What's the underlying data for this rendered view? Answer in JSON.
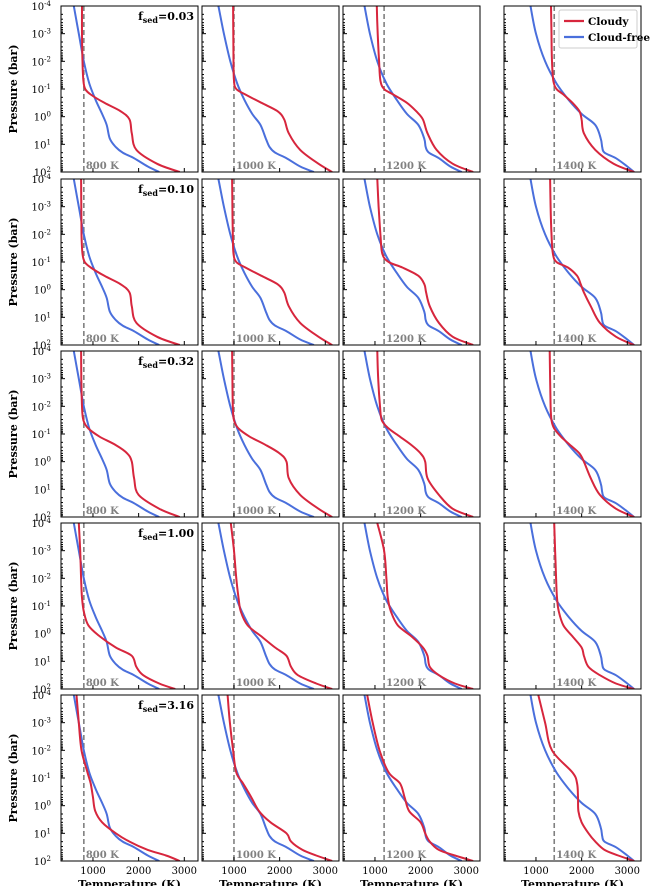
{
  "chart_data": {
    "type": "line",
    "layout": "grid 5 rows x 4 columns",
    "xlabel": "Temperature (K)",
    "ylabel": "Pressure (bar)",
    "yscale": "log",
    "yreversed": true,
    "ylim": [
      0.0001,
      100
    ],
    "xlim": [
      300,
      3300
    ],
    "xticks": [
      1000,
      2000,
      3000
    ],
    "xtick_labels": [
      "1000",
      "2000",
      "3000"
    ],
    "yticks": [
      0.0001,
      0.001,
      0.01,
      0.1,
      1,
      10,
      100
    ],
    "ytick_mant": [
      "10",
      "10",
      "10",
      "10",
      "10",
      "10",
      "10"
    ],
    "ytick_exp": [
      "-4",
      "-3",
      "-2",
      "-1",
      "0",
      "1",
      "2"
    ],
    "legend": {
      "placement": "top-right",
      "entries": [
        "Cloudy",
        "Cloud-free"
      ]
    },
    "series_colors": {
      "Cloudy": "#d7263d",
      "Cloud-free": "#4a6fdc"
    },
    "teff_line_color": "#808080",
    "columns": [
      {
        "teff": 800,
        "teff_label": "800 K"
      },
      {
        "teff": 1000,
        "teff_label": "1000 K"
      },
      {
        "teff": 1200,
        "teff_label": "1200 K"
      },
      {
        "teff": 1400,
        "teff_label": "1400 K"
      }
    ],
    "rows": [
      {
        "fsed_main": "f",
        "fsed_sub": "sed",
        "fsed_value": "=0.03"
      },
      {
        "fsed_main": "f",
        "fsed_sub": "sed",
        "fsed_value": "=0.10"
      },
      {
        "fsed_main": "f",
        "fsed_sub": "sed",
        "fsed_value": "=0.32"
      },
      {
        "fsed_main": "f",
        "fsed_sub": "sed",
        "fsed_value": "=1.00"
      },
      {
        "fsed_main": "f",
        "fsed_sub": "sed",
        "fsed_value": "=3.16"
      }
    ],
    "clear_profiles": [
      {
        "T": [
          580,
          690,
          800,
          920,
          1060,
          1200,
          1300,
          1370,
          1500,
          1650,
          1900,
          2200,
          2450
        ],
        "logP": [
          -4,
          -3,
          -2,
          -1.2,
          -0.6,
          -0.1,
          0.3,
          0.8,
          1.1,
          1.3,
          1.5,
          1.8,
          2
        ]
      },
      {
        "T": [
          660,
          780,
          920,
          1070,
          1230,
          1400,
          1580,
          1700,
          1780,
          1900,
          2150,
          2450,
          2750
        ],
        "logP": [
          -4,
          -3,
          -2,
          -1.2,
          -0.6,
          -0.1,
          0.3,
          0.8,
          1.1,
          1.3,
          1.5,
          1.8,
          2
        ]
      },
      {
        "T": [
          770,
          890,
          1050,
          1250,
          1480,
          1700,
          1950,
          2080,
          2110,
          2180,
          2400,
          2650,
          2900
        ],
        "logP": [
          -4,
          -3,
          -2,
          -1.2,
          -0.6,
          -0.1,
          0.3,
          0.8,
          1.1,
          1.3,
          1.5,
          1.8,
          2
        ]
      },
      {
        "T": [
          880,
          1000,
          1200,
          1450,
          1720,
          2000,
          2300,
          2420,
          2450,
          2500,
          2750,
          3000,
          3150
        ],
        "logP": [
          -4,
          -3,
          -2,
          -1.2,
          -0.6,
          -0.1,
          0.3,
          0.8,
          1.1,
          1.3,
          1.5,
          1.8,
          2
        ]
      }
    ],
    "panels": [
      [
        {
          "T": [
            760,
            760,
            770,
            790,
            830,
            950,
            1250,
            1600,
            1800,
            1850,
            1950,
            2400,
            2900
          ],
          "logP": [
            -4,
            -3,
            -2,
            -1.3,
            -1,
            -0.8,
            -0.5,
            -0.2,
            0.1,
            0.6,
            1.2,
            1.7,
            2
          ]
        },
        {
          "T": [
            980,
            985,
            990,
            1000,
            1050,
            1250,
            1600,
            1950,
            2100,
            2200,
            2450,
            2850,
            3150
          ],
          "logP": [
            -4,
            -3,
            -2,
            -1.3,
            -1,
            -0.8,
            -0.5,
            -0.2,
            0.1,
            0.6,
            1.2,
            1.7,
            2
          ]
        },
        {
          "T": [
            1040,
            1060,
            1090,
            1120,
            1200,
            1400,
            1700,
            1900,
            2050,
            2150,
            2350,
            2700,
            3150
          ],
          "logP": [
            -4,
            -3,
            -2,
            -1.3,
            -1,
            -0.8,
            -0.5,
            -0.2,
            0.1,
            0.6,
            1.2,
            1.7,
            2
          ]
        },
        {
          "T": [
            1330,
            1340,
            1350,
            1380,
            1450,
            1600,
            1800,
            1950,
            2000,
            2050,
            2300,
            2700,
            3150
          ],
          "logP": [
            -4,
            -3,
            -2,
            -1.3,
            -1,
            -0.8,
            -0.5,
            -0.2,
            0.1,
            0.6,
            1.2,
            1.7,
            2
          ]
        }
      ],
      [
        {
          "T": [
            740,
            745,
            750,
            770,
            820,
            950,
            1250,
            1600,
            1800,
            1850,
            1950,
            2400,
            2900
          ],
          "logP": [
            -4,
            -3,
            -2,
            -1.3,
            -1,
            -0.8,
            -0.5,
            -0.2,
            0.1,
            0.6,
            1.2,
            1.7,
            2
          ]
        },
        {
          "T": [
            960,
            965,
            975,
            990,
            1050,
            1250,
            1600,
            1950,
            2100,
            2200,
            2450,
            2850,
            3150
          ],
          "logP": [
            -4,
            -3,
            -2,
            -1.3,
            -1,
            -0.8,
            -0.5,
            -0.2,
            0.1,
            0.6,
            1.2,
            1.7,
            2
          ]
        },
        {
          "T": [
            1050,
            1080,
            1120,
            1160,
            1300,
            1600,
            1950,
            2080,
            2120,
            2200,
            2400,
            2700,
            3150
          ],
          "logP": [
            -4,
            -3,
            -2,
            -1.3,
            -1,
            -0.8,
            -0.5,
            -0.2,
            0.1,
            0.6,
            1.2,
            1.7,
            2
          ]
        },
        {
          "T": [
            1310,
            1320,
            1340,
            1370,
            1450,
            1700,
            1900,
            1980,
            2050,
            2200,
            2400,
            2750,
            3150
          ],
          "logP": [
            -4,
            -3,
            -2,
            -1.3,
            -1,
            -0.8,
            -0.5,
            -0.2,
            0.1,
            0.6,
            1.2,
            1.7,
            2
          ]
        }
      ],
      [
        {
          "T": [
            740,
            745,
            760,
            790,
            900,
            1150,
            1500,
            1750,
            1850,
            1900,
            2000,
            2450,
            2900
          ],
          "logP": [
            -4,
            -3,
            -2,
            -1.5,
            -1.2,
            -0.9,
            -0.6,
            -0.3,
            0,
            0.6,
            1.2,
            1.7,
            2
          ]
        },
        {
          "T": [
            960,
            965,
            975,
            1000,
            1100,
            1350,
            1700,
            2000,
            2150,
            2200,
            2450,
            2850,
            3150
          ],
          "logP": [
            -4,
            -3,
            -2,
            -1.5,
            -1.2,
            -0.9,
            -0.6,
            -0.3,
            0,
            0.6,
            1.2,
            1.7,
            2
          ]
        },
        {
          "T": [
            1050,
            1070,
            1110,
            1150,
            1300,
            1550,
            1800,
            2000,
            2100,
            2150,
            2400,
            2700,
            3150
          ],
          "logP": [
            -4,
            -3,
            -2,
            -1.5,
            -1.2,
            -0.9,
            -0.6,
            -0.3,
            0,
            0.6,
            1.2,
            1.7,
            2
          ]
        },
        {
          "T": [
            1300,
            1310,
            1320,
            1340,
            1400,
            1550,
            1750,
            1950,
            2050,
            2200,
            2400,
            2750,
            3150
          ],
          "logP": [
            -4,
            -3,
            -2,
            -1.5,
            -1.2,
            -0.9,
            -0.6,
            -0.3,
            0,
            0.6,
            1.2,
            1.7,
            2
          ]
        }
      ],
      [
        {
          "T": [
            690,
            720,
            740,
            760,
            800,
            900,
            1150,
            1500,
            1850,
            1950,
            2100,
            2450,
            2800
          ],
          "logP": [
            -4,
            -3,
            -2,
            -1.3,
            -0.8,
            -0.3,
            0.1,
            0.5,
            0.8,
            1.2,
            1.5,
            1.8,
            2
          ]
        },
        {
          "T": [
            930,
            1000,
            1050,
            1100,
            1150,
            1300,
            1600,
            1900,
            2150,
            2250,
            2400,
            2800,
            3150
          ],
          "logP": [
            -4,
            -3,
            -2,
            -1.3,
            -0.8,
            -0.3,
            0.1,
            0.5,
            0.8,
            1.2,
            1.5,
            1.8,
            2
          ]
        },
        {
          "T": [
            1050,
            1200,
            1250,
            1280,
            1350,
            1500,
            1800,
            2050,
            2150,
            2200,
            2400,
            2750,
            3150
          ],
          "logP": [
            -4,
            -3,
            -2,
            -1.3,
            -0.8,
            -0.3,
            0.1,
            0.5,
            0.8,
            1.2,
            1.5,
            1.8,
            2
          ]
        },
        {
          "T": [
            1400,
            1420,
            1440,
            1460,
            1500,
            1600,
            1800,
            2000,
            2050,
            2150,
            2400,
            2750,
            3150
          ],
          "logP": [
            -4,
            -3,
            -2,
            -1.3,
            -0.8,
            -0.3,
            0.1,
            0.5,
            0.8,
            1.2,
            1.5,
            1.8,
            2
          ]
        }
      ],
      [
        {
          "T": [
            640,
            690,
            750,
            880,
            950,
            1000,
            1050,
            1200,
            1500,
            1800,
            2200,
            2600,
            2900
          ],
          "logP": [
            -4,
            -3,
            -2,
            -1.2,
            -0.8,
            -0.3,
            0.2,
            0.6,
            1,
            1.3,
            1.6,
            1.8,
            2
          ]
        },
        {
          "T": [
            860,
            910,
            980,
            1050,
            1200,
            1380,
            1550,
            1800,
            2150,
            2250,
            2500,
            2800,
            3150
          ],
          "logP": [
            -4,
            -3,
            -2,
            -1.2,
            -0.8,
            -0.3,
            0.2,
            0.6,
            1,
            1.3,
            1.6,
            1.8,
            2
          ]
        },
        {
          "T": [
            830,
            950,
            1100,
            1300,
            1550,
            1650,
            1750,
            2000,
            2100,
            2200,
            2400,
            2750,
            3150
          ],
          "logP": [
            -4,
            -3,
            -2,
            -1.2,
            -0.8,
            -0.3,
            0.2,
            0.6,
            1,
            1.3,
            1.6,
            1.8,
            2
          ]
        },
        {
          "T": [
            1050,
            1200,
            1350,
            1800,
            1900,
            1920,
            1930,
            2000,
            2150,
            2300,
            2500,
            2800,
            3150
          ],
          "logP": [
            -4,
            -3,
            -2,
            -1.2,
            -0.8,
            -0.3,
            0.2,
            0.6,
            1,
            1.3,
            1.6,
            1.8,
            2
          ]
        }
      ]
    ]
  }
}
